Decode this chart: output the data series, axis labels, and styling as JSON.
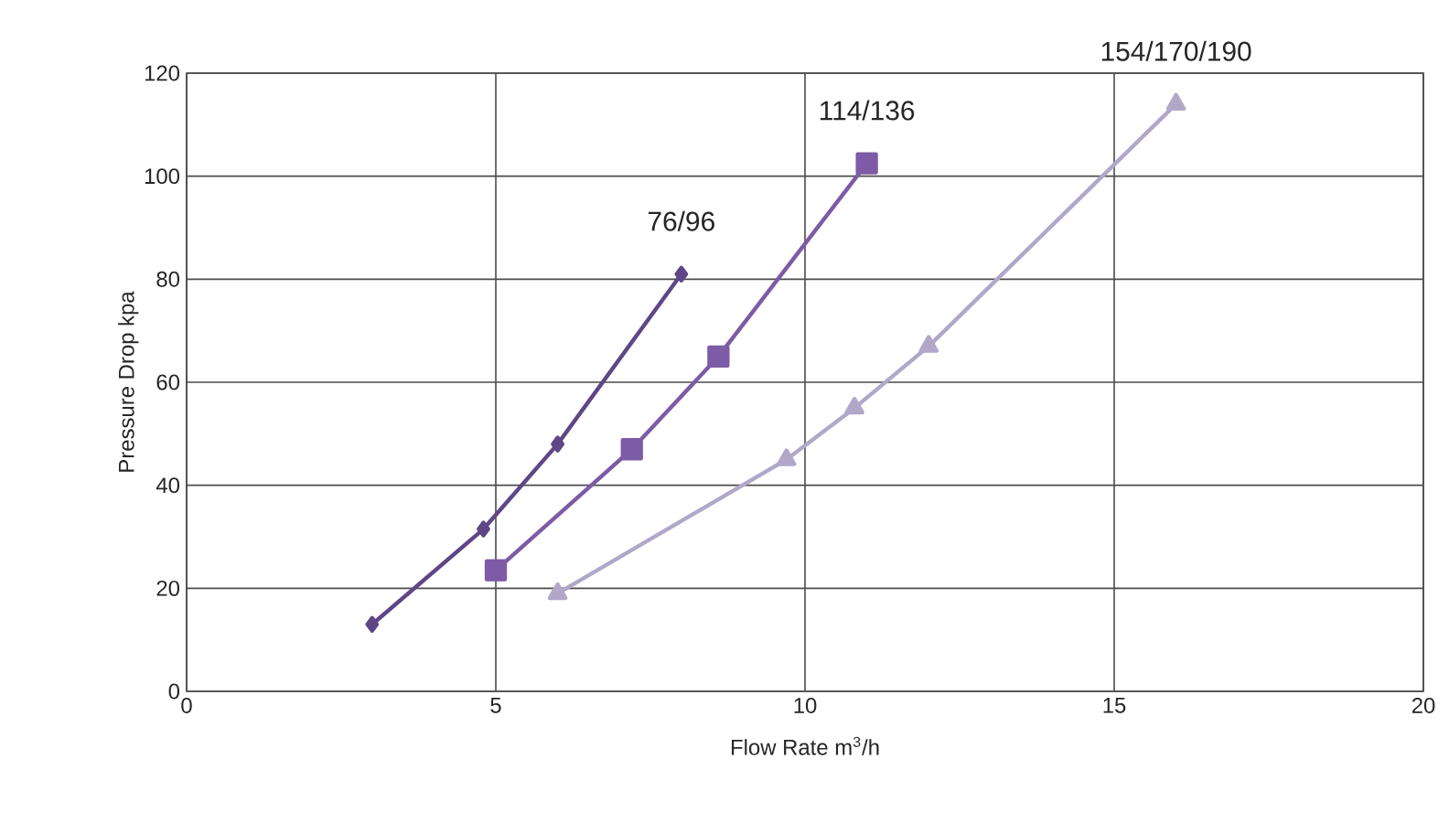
{
  "chart_data": {
    "type": "line",
    "xlabel": "Flow Rate m$^{3}$/h",
    "ylabel": "Pressure Drop kpa",
    "xlim": [
      0,
      20
    ],
    "ylim": [
      0,
      120
    ],
    "xticks": [
      0,
      5,
      10,
      15,
      20
    ],
    "yticks": [
      0,
      20,
      40,
      60,
      80,
      100,
      120
    ],
    "grid": true,
    "legend": false,
    "line_style": "solid",
    "series": [
      {
        "name": "76/96",
        "color": "#5e4687",
        "marker": "diamond",
        "x": [
          3.0,
          4.8,
          6.0,
          8.0
        ],
        "values": [
          13,
          31.5,
          48,
          81
        ]
      },
      {
        "name": "114/136",
        "color": "#7d5ba6",
        "marker": "square",
        "x": [
          5.0,
          7.2,
          8.6,
          11.0
        ],
        "values": [
          23.5,
          47,
          65,
          102.5
        ]
      },
      {
        "name": "154/170/190",
        "color": "#b1a7c9",
        "marker": "triangle",
        "x": [
          6.0,
          9.7,
          10.8,
          12.0,
          16.0
        ],
        "values": [
          19,
          45,
          55,
          67,
          114
        ]
      }
    ]
  }
}
